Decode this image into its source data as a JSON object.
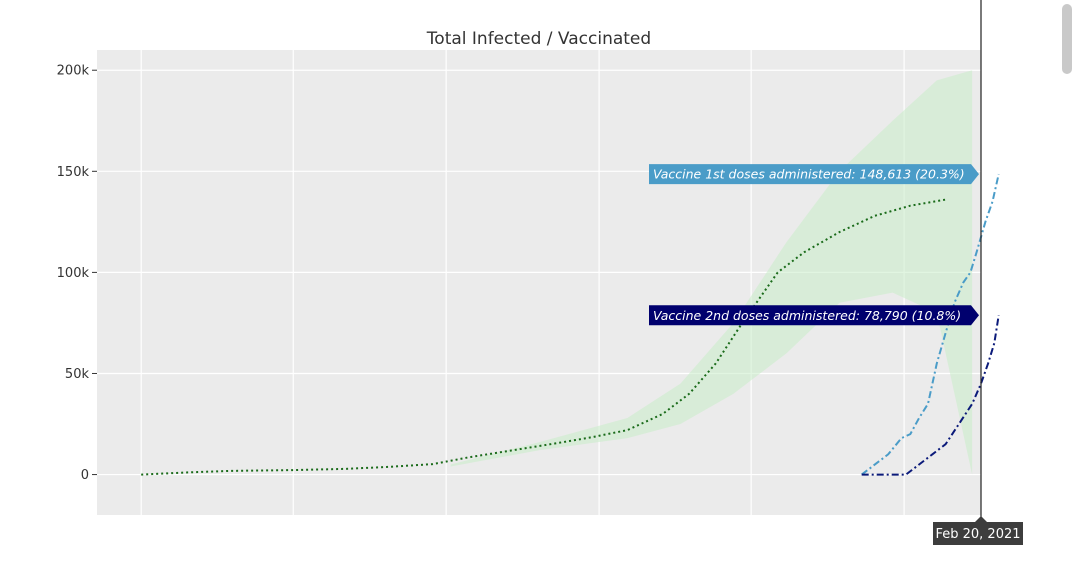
{
  "chart_data": {
    "type": "line",
    "title": "Total Infected / Vaccinated",
    "xlabel": "",
    "ylabel": "",
    "ylim": [
      -20000,
      210000
    ],
    "yticks": [
      {
        "value": 200000,
        "label": "200k"
      },
      {
        "value": 150000,
        "label": "150k"
      },
      {
        "value": 100000,
        "label": "100k"
      },
      {
        "value": 50000,
        "label": "50k"
      },
      {
        "value": 0,
        "label": "0"
      }
    ],
    "x_domain": [
      0,
      100
    ],
    "x_gridlines": [
      5,
      22.2,
      39.5,
      56.8,
      74.0,
      91.3
    ],
    "grid": true,
    "series": [
      {
        "key": "infected",
        "color": "#1a6b1a",
        "dash": "dotted",
        "points": [
          [
            5,
            0
          ],
          [
            10,
            1000
          ],
          [
            15,
            1800
          ],
          [
            22,
            2200
          ],
          [
            28,
            2800
          ],
          [
            33,
            3800
          ],
          [
            38,
            5200
          ],
          [
            42,
            8500
          ],
          [
            47,
            12000
          ],
          [
            52,
            15500
          ],
          [
            56,
            18500
          ],
          [
            60,
            22000
          ],
          [
            64,
            30000
          ],
          [
            67,
            40000
          ],
          [
            70,
            55000
          ],
          [
            73,
            75000
          ],
          [
            77,
            100000
          ],
          [
            80,
            110000
          ],
          [
            84,
            120000
          ],
          [
            88,
            128000
          ],
          [
            92,
            133000
          ],
          [
            96,
            136000
          ]
        ]
      },
      {
        "key": "vaccine_1st",
        "color": "#4a9cc8",
        "dash": "dashdot",
        "points": [
          [
            86.5,
            0
          ],
          [
            89.5,
            10000
          ],
          [
            91,
            18000
          ],
          [
            92,
            20000
          ],
          [
            93,
            28000
          ],
          [
            94,
            35000
          ],
          [
            95,
            55000
          ],
          [
            96,
            70000
          ],
          [
            97,
            85000
          ],
          [
            98,
            95000
          ],
          [
            98.8,
            100000
          ],
          [
            99.5,
            110000
          ],
          [
            100.5,
            125000
          ],
          [
            101.3,
            135000
          ],
          [
            102,
            148613
          ]
        ]
      },
      {
        "key": "vaccine_2nd",
        "color": "#0b1a7a",
        "dash": "dashdot",
        "points": [
          [
            86.5,
            0
          ],
          [
            89,
            0
          ],
          [
            91.5,
            0
          ],
          [
            93,
            5000
          ],
          [
            94.5,
            10000
          ],
          [
            96,
            15000
          ],
          [
            97.5,
            25000
          ],
          [
            99,
            35000
          ],
          [
            100,
            45000
          ],
          [
            100.8,
            55000
          ],
          [
            101.5,
            65000
          ],
          [
            102,
            78790
          ]
        ]
      }
    ],
    "band": {
      "color": "#c8ecc8",
      "upper": [
        [
          40,
          5000
        ],
        [
          50,
          16000
        ],
        [
          60,
          28000
        ],
        [
          66,
          45000
        ],
        [
          72,
          75000
        ],
        [
          78,
          115000
        ],
        [
          84,
          150000
        ],
        [
          90,
          175000
        ],
        [
          95,
          195000
        ],
        [
          99,
          200000
        ]
      ],
      "lower": [
        [
          99,
          0
        ],
        [
          95,
          80000
        ],
        [
          90,
          90000
        ],
        [
          84,
          85000
        ],
        [
          78,
          60000
        ],
        [
          72,
          40000
        ],
        [
          66,
          25000
        ],
        [
          60,
          18000
        ],
        [
          50,
          12000
        ],
        [
          40,
          4000
        ]
      ]
    },
    "hover_labels": [
      {
        "text": "Vaccine 1st doses administered: 148,613 (20.3%)",
        "color": "#4a9cc8",
        "value": 148613
      },
      {
        "text": "Vaccine 2nd doses administered: 78,790 (10.8%)",
        "color": "#00006e",
        "value": 78790
      }
    ],
    "spike_date": "Feb 20, 2021"
  }
}
